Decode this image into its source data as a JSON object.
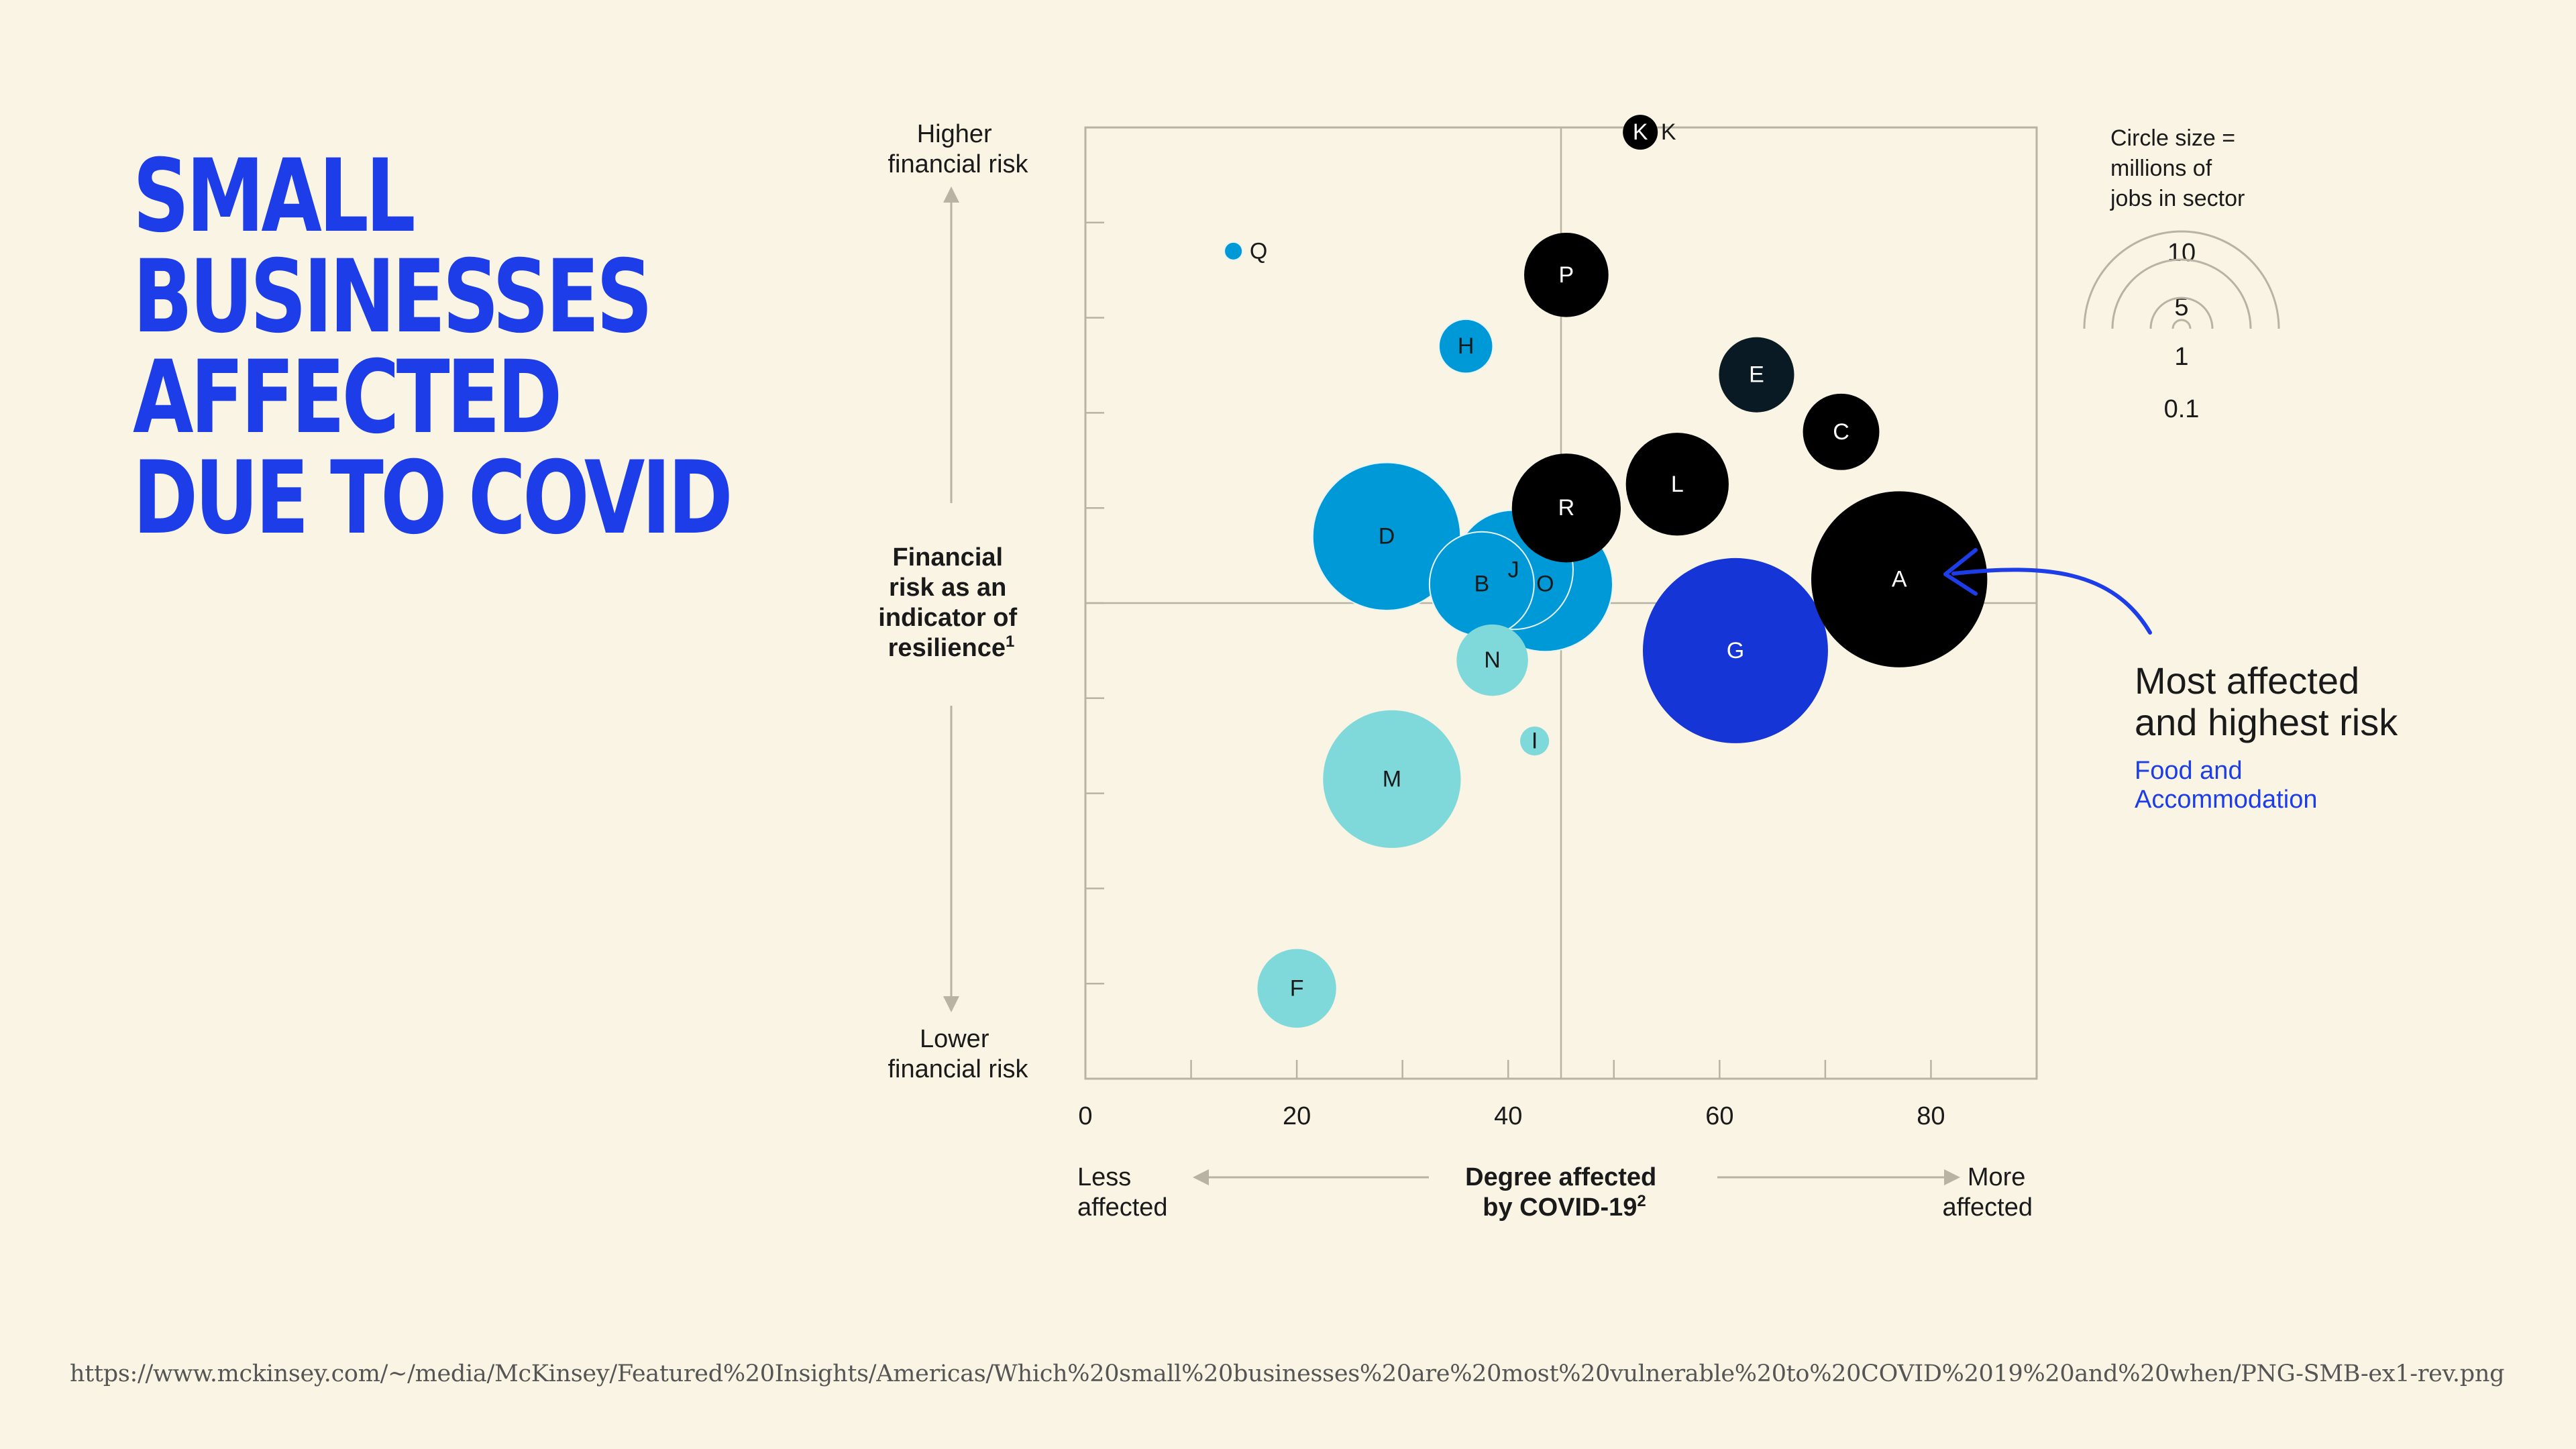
{
  "title": {
    "lines": [
      "SMALL",
      "BUSINESSES",
      "AFFECTED",
      "DUE TO COVID"
    ]
  },
  "source_url": "https://www.mckinsey.com/~/media/McKinsey/Featured%20Insights/Americas/Which%20small%20businesses%20are%20most%20vulnerable%20to%20COVID%2019%20and%20when/PNG-SMB-ex1-rev.png",
  "annotation": {
    "title": "Most affected\nand highest risk",
    "subtitle": "Food and\nAccommodation"
  },
  "size_legend": {
    "title": "Circle size =\nmillions of\njobs in sector",
    "values": [
      "10",
      "5",
      "1",
      "0.1"
    ]
  },
  "colors": {
    "background": "#f9f4e3",
    "title": "#1d3de8",
    "black": "#000000",
    "navy": "#0a1a24",
    "royal_blue": "#1535d6",
    "mid_blue": "#0099d8",
    "light_teal": "#7fd9db",
    "axis": "#b8b3a3"
  },
  "chart_data": {
    "type": "scatter",
    "xlabel": "Degree affected\nby COVID-19²",
    "ylabel": "Financial\nrisk as an\nindicator of\nresilience¹",
    "y_top_label": "Higher\nfinancial risk",
    "y_bottom_label": "Lower\nfinancial risk",
    "x_left_label": "Less\naffected",
    "x_right_label": "More\naffected",
    "xlim": [
      0,
      90
    ],
    "x_ticks": [
      0,
      20,
      40,
      60,
      80
    ],
    "ylim": [
      0,
      10
    ],
    "y_divider": 5,
    "x_divider": 45,
    "points": [
      {
        "label": "A",
        "x": 77.0,
        "y": 5.25,
        "jobs": 8.5,
        "color": "black"
      },
      {
        "label": "G",
        "x": 61.5,
        "y": 4.5,
        "jobs": 9.4,
        "color": "royal_blue"
      },
      {
        "label": "C",
        "x": 71.5,
        "y": 6.8,
        "jobs": 1.6,
        "color": "black"
      },
      {
        "label": "E",
        "x": 63.5,
        "y": 7.4,
        "jobs": 1.55,
        "color": "navy"
      },
      {
        "label": "L",
        "x": 56.0,
        "y": 6.25,
        "jobs": 2.9,
        "color": "black"
      },
      {
        "label": "R",
        "x": 45.5,
        "y": 6.0,
        "jobs": 3.25,
        "color": "black"
      },
      {
        "label": "P",
        "x": 45.5,
        "y": 8.45,
        "jobs": 1.95,
        "color": "black"
      },
      {
        "label": "K",
        "x": 52.5,
        "y": 9.95,
        "jobs": 0.16,
        "color": "black"
      },
      {
        "label": "H",
        "x": 36.0,
        "y": 7.7,
        "jobs": 0.8,
        "color": "mid_blue"
      },
      {
        "label": "Q",
        "x": 14.0,
        "y": 8.7,
        "jobs": 0.09,
        "color": "mid_blue"
      },
      {
        "label": "D",
        "x": 28.5,
        "y": 5.7,
        "jobs": 6.0,
        "color": "mid_blue"
      },
      {
        "label": "O",
        "x": 43.5,
        "y": 5.2,
        "jobs": 5.0,
        "color": "mid_blue"
      },
      {
        "label": "J",
        "x": 40.5,
        "y": 5.35,
        "jobs": 3.9,
        "color": "mid_blue"
      },
      {
        "label": "B",
        "x": 37.5,
        "y": 5.2,
        "jobs": 3.0,
        "color": "mid_blue"
      },
      {
        "label": "N",
        "x": 38.5,
        "y": 4.4,
        "jobs": 1.4,
        "color": "light_teal"
      },
      {
        "label": "I",
        "x": 42.5,
        "y": 3.55,
        "jobs": 0.23,
        "color": "light_teal"
      },
      {
        "label": "M",
        "x": 29.0,
        "y": 3.15,
        "jobs": 5.2,
        "color": "light_teal"
      },
      {
        "label": "F",
        "x": 20.0,
        "y": 0.95,
        "jobs": 1.7,
        "color": "light_teal"
      }
    ]
  }
}
